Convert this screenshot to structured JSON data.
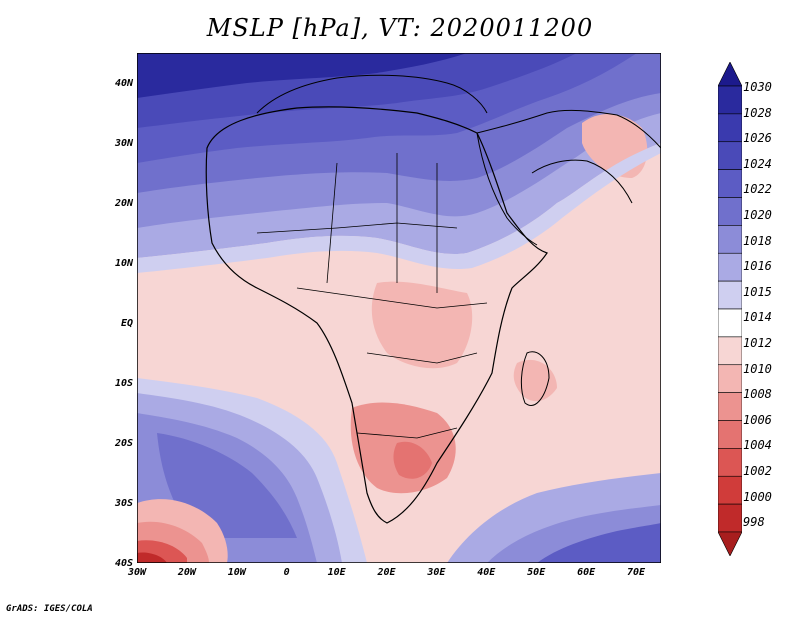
{
  "title": "MSLP [hPa], VT: 2020011200",
  "footer": "GrADS: IGES/COLA",
  "map": {
    "lon_labels": [
      "30W",
      "20W",
      "10W",
      "0",
      "10E",
      "20E",
      "30E",
      "40E",
      "50E",
      "60E",
      "70E"
    ],
    "lat_labels": [
      "40N",
      "30N",
      "20N",
      "10N",
      "EQ",
      "10S",
      "20S",
      "30S",
      "40S"
    ],
    "lon_range": [
      -30,
      75
    ],
    "lat_range": [
      -40,
      45
    ]
  },
  "colorbar": {
    "levels": [
      "1030",
      "1028",
      "1026",
      "1024",
      "1022",
      "1020",
      "1018",
      "1016",
      "1015",
      "1014",
      "1012",
      "1010",
      "1008",
      "1006",
      "1004",
      "1002",
      "1000",
      "998"
    ],
    "colors": [
      "#1c1a8c",
      "#2a2a9e",
      "#3a3aae",
      "#4a4ab8",
      "#5c5cc4",
      "#7070cc",
      "#8c8cd8",
      "#aaaae4",
      "#cfcff0",
      "#ffffff",
      "#f7d6d4",
      "#f3b6b3",
      "#ec9390",
      "#e47371",
      "#dc5654",
      "#d03c3a",
      "#c02a2a",
      "#a81e1e"
    ]
  }
}
